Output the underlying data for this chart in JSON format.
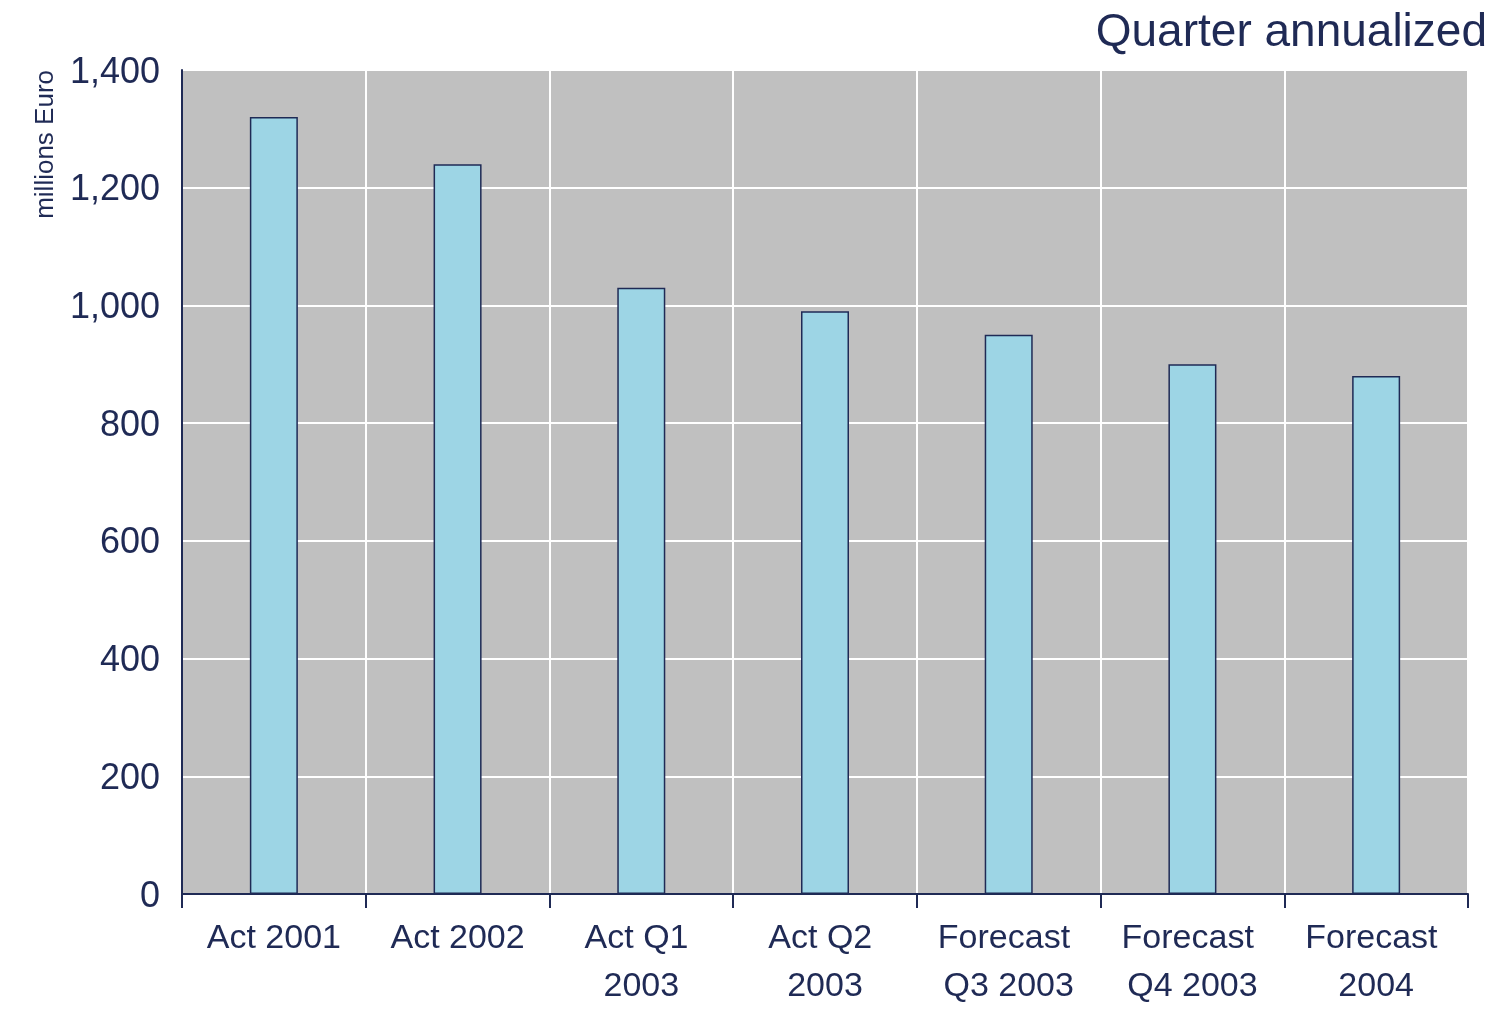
{
  "chart_data": {
    "type": "bar",
    "title": "Quarter annualized",
    "ylabel": "millions Euro",
    "categories": [
      "Act 2001",
      "Act 2002",
      "Act Q1 2003",
      "Act Q2 2003",
      "Forecast Q3 2003",
      "Forecast Q4 2003",
      "Forecast 2004"
    ],
    "values": [
      1320,
      1240,
      1030,
      990,
      950,
      900,
      880
    ],
    "color": "#9dd5e5",
    "ylim": [
      0,
      1400
    ],
    "yticks": [
      0,
      {
        "value": 200,
        "label": "200"
      },
      {
        "value": 400,
        "label": "400"
      },
      {
        "value": 600,
        "label": "600"
      },
      {
        "value": 800,
        "label": "800"
      },
      {
        "value": 1000,
        "label": "1,000"
      },
      {
        "value": 1200,
        "label": "1,200"
      },
      {
        "value": 1400,
        "label": "1,400"
      }
    ],
    "grid": true
  }
}
